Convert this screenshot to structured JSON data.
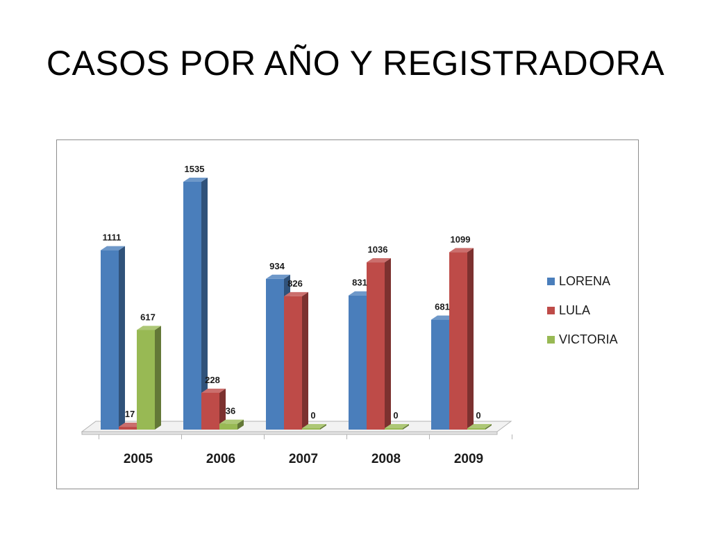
{
  "slide": {
    "title": "CASOS POR AÑO Y REGISTRADORA"
  },
  "chart_data": {
    "type": "bar",
    "title": "",
    "xlabel": "",
    "ylabel": "",
    "categories": [
      "2005",
      "2006",
      "2007",
      "2008",
      "2009"
    ],
    "series": [
      {
        "name": "LORENA",
        "color": "#4a7ebb",
        "values": [
          1111,
          1535,
          934,
          831,
          681
        ]
      },
      {
        "name": "LULA",
        "color": "#be4b48",
        "values": [
          17,
          228,
          826,
          1036,
          1099
        ]
      },
      {
        "name": "VICTORIA",
        "color": "#98b954",
        "values": [
          617,
          36,
          0,
          0,
          0
        ]
      }
    ],
    "ylim": [
      0,
      1535
    ],
    "grid": false,
    "three_d": true,
    "legend_position": "right"
  }
}
